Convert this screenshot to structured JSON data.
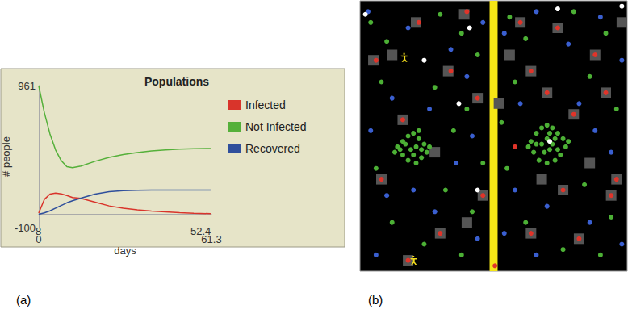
{
  "chart_data": [
    {
      "type": "line",
      "panel": "(a)",
      "title": "Populations",
      "xlabel": "days",
      "ylabel": "# people",
      "xlim": [
        0,
        61.3
      ],
      "xticks": [
        0,
        61.3
      ],
      "ylim": [
        -100,
        961
      ],
      "yticks": [
        -100,
        961
      ],
      "grid": false,
      "legend": "right",
      "annotations": [
        "8",
        "52.4"
      ],
      "x": [
        0,
        2,
        4,
        6,
        8,
        10,
        12,
        15,
        20,
        25,
        30,
        35,
        40,
        45,
        50,
        55,
        61
      ],
      "series": [
        {
          "name": "Infected",
          "color": "#d9342b",
          "values": [
            8,
            110,
            150,
            158,
            152,
            140,
            125,
            118,
            90,
            62,
            45,
            33,
            24,
            17,
            11,
            7,
            4
          ]
        },
        {
          "name": "Not Infected",
          "color": "#55b03a",
          "values": [
            961,
            760,
            600,
            480,
            400,
            355,
            347,
            360,
            395,
            425,
            445,
            460,
            472,
            480,
            486,
            490,
            491
          ]
        },
        {
          "name": "Recovered",
          "color": "#2f4f9c",
          "values": [
            0,
            10,
            25,
            45,
            65,
            85,
            100,
            120,
            150,
            168,
            176,
            179,
            180,
            180,
            180,
            180,
            180
          ]
        }
      ]
    },
    {
      "type": "scatter",
      "panel": "(b)",
      "xlim": [
        0,
        100
      ],
      "ylim": [
        0,
        100
      ],
      "tick_labels": false,
      "grid": false,
      "wall": [
        48.5,
        51.5
      ],
      "series": [
        {
          "color": "#555555",
          "marker": "square",
          "x": [
            21,
            39,
            5,
            33,
            16,
            44,
            8,
            30,
            18,
            46,
            60,
            74,
            88,
            64,
            92,
            80,
            96,
            76,
            64,
            82,
            94,
            70,
            12,
            28,
            40,
            56,
            86,
            68,
            98,
            52
          ],
          "values": [
            92,
            95,
            78,
            74,
            56,
            64,
            34,
            14,
            4,
            28,
            92,
            90,
            80,
            74,
            66,
            58,
            34,
            30,
            14,
            12,
            28,
            66,
            80,
            44,
            18,
            80,
            40,
            34,
            92,
            62
          ]
        },
        {
          "color": "#3a5fd0",
          "marker": "circle",
          "x": [
            3,
            18,
            34,
            46,
            12,
            26,
            40,
            4,
            36,
            10,
            28,
            44,
            6,
            20,
            54,
            66,
            78,
            90,
            98,
            60,
            82,
            94,
            58,
            70,
            86,
            98,
            66,
            54,
            88,
            42
          ],
          "values": [
            96,
            90,
            82,
            92,
            64,
            60,
            72,
            52,
            40,
            28,
            22,
            12,
            6,
            30,
            88,
            96,
            84,
            94,
            78,
            62,
            62,
            44,
            30,
            24,
            18,
            10,
            6,
            14,
            52,
            50
          ]
        },
        {
          "color": "#4cb035",
          "marker": "circle",
          "x": [
            14,
            16,
            18,
            20,
            22,
            24,
            25,
            23,
            21,
            18,
            16,
            15,
            19,
            21,
            23,
            17,
            20,
            26,
            13,
            22,
            64,
            66,
            68,
            70,
            72,
            74,
            76,
            77,
            75,
            73,
            70,
            67,
            65,
            68,
            70,
            72,
            74,
            69,
            71,
            66,
            73,
            78,
            63,
            71,
            4,
            10,
            30,
            38,
            44,
            8,
            28,
            40,
            35,
            6,
            32,
            42,
            12,
            24,
            38,
            56,
            62,
            80,
            92,
            58,
            86,
            96,
            55,
            84,
            94,
            62,
            76,
            90,
            53,
            46
          ],
          "values": [
            46,
            48,
            50,
            51,
            49,
            47,
            44,
            42,
            40,
            41,
            43,
            45,
            45,
            46,
            45,
            47,
            43,
            46,
            44,
            52,
            48,
            51,
            53,
            54,
            53,
            51,
            49,
            46,
            43,
            41,
            40,
            41,
            44,
            47,
            49,
            47,
            45,
            44,
            51,
            47,
            49,
            48,
            46,
            45,
            92,
            85,
            95,
            88,
            80,
            70,
            68,
            60,
            52,
            38,
            30,
            22,
            18,
            10,
            6,
            94,
            86,
            96,
            88,
            70,
            72,
            60,
            38,
            32,
            20,
            18,
            8,
            6,
            55,
            40
          ]
        },
        {
          "color": "#e0342a",
          "marker": "circle",
          "x": [
            22,
            40,
            6,
            34,
            16,
            44,
            8,
            30,
            18,
            46,
            50.5,
            60,
            74,
            88,
            64,
            92,
            80,
            58,
            96,
            76,
            64,
            82,
            94,
            70
          ],
          "values": [
            92,
            96,
            78,
            74,
            56,
            64,
            34,
            14,
            4,
            28,
            2,
            92,
            90,
            80,
            74,
            66,
            58,
            46,
            34,
            30,
            14,
            12,
            28,
            66
          ]
        },
        {
          "color": "#ffffff",
          "marker": "circle",
          "x": [
            2,
            41,
            24,
            37,
            98,
            74,
            44,
            71
          ],
          "values": [
            95,
            90,
            78,
            62,
            98,
            97,
            30,
            48
          ]
        },
        {
          "color": "#f2dc1c",
          "marker": "person",
          "x": [
            16.5,
            20
          ],
          "values": [
            79,
            4
          ]
        }
      ]
    }
  ]
}
